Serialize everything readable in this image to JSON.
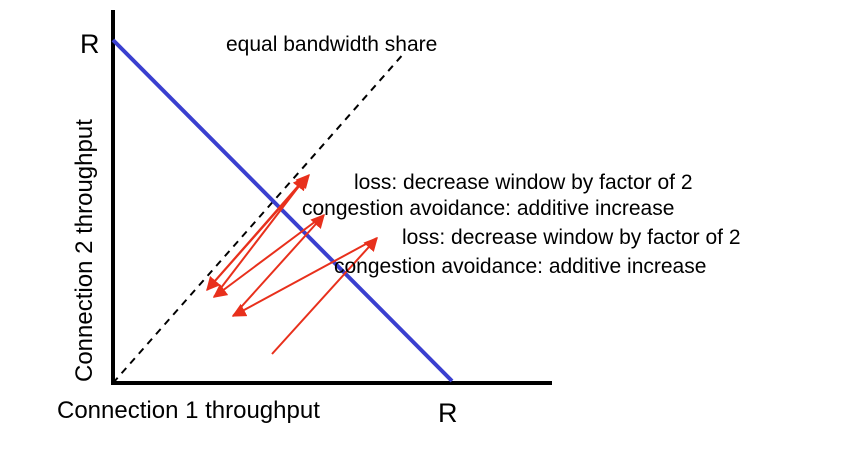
{
  "diagram": {
    "labels": {
      "y_axis": "Connection 2 throughput",
      "x_axis": "Connection 1 throughput",
      "r_y": "R",
      "r_x": "R",
      "equal_share": "equal bandwidth share",
      "loss_1": "loss: decrease window by factor of 2",
      "ca_1": "congestion avoidance: additive increase",
      "loss_2": "loss: decrease window by factor of 2",
      "ca_2": "congestion avoidance: additive increase"
    },
    "colors": {
      "axis": "#000000",
      "capacity_line": "#3a3fcf",
      "equal_share_line": "#000000",
      "trajectory_arrows": "#e8301c"
    }
  }
}
